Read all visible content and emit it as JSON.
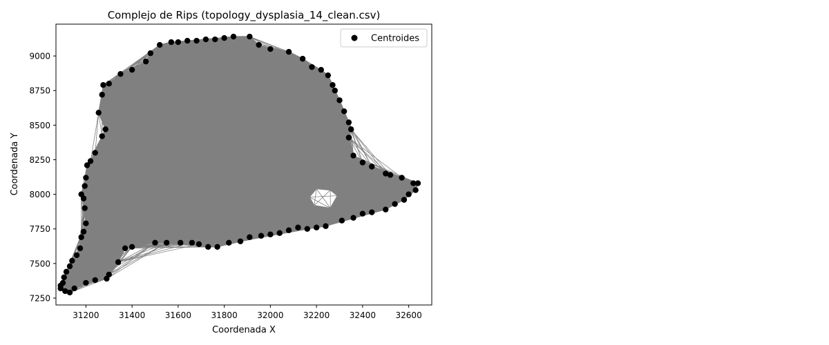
{
  "chart_data": {
    "type": "scatter",
    "title": "Complejo de Rips (topology_dysplasia_14_clean.csv)",
    "xlabel": "Coordenada X",
    "ylabel": "Coordenada Y",
    "xlim": [
      31070,
      32700
    ],
    "ylim": [
      7200,
      9230
    ],
    "xticks": [
      31200,
      31400,
      31600,
      31800,
      32000,
      32200,
      32400,
      32600
    ],
    "yticks": [
      7250,
      7500,
      7750,
      8000,
      8250,
      8500,
      8750,
      9000
    ],
    "grid": false,
    "legend": {
      "location": "upper right",
      "entries": [
        "Centroides"
      ]
    },
    "series": [
      {
        "name": "Centroides",
        "color": "#000000",
        "marker": "circle",
        "points": [
          [
            31090,
            7340
          ],
          [
            31100,
            7360
          ],
          [
            31105,
            7400
          ],
          [
            31115,
            7440
          ],
          [
            31130,
            7480
          ],
          [
            31140,
            7520
          ],
          [
            31160,
            7560
          ],
          [
            31175,
            7610
          ],
          [
            31180,
            7690
          ],
          [
            31190,
            7730
          ],
          [
            31200,
            7790
          ],
          [
            31195,
            7900
          ],
          [
            31190,
            7970
          ],
          [
            31180,
            8000
          ],
          [
            31195,
            8060
          ],
          [
            31200,
            8120
          ],
          [
            31205,
            8210
          ],
          [
            31220,
            8240
          ],
          [
            31240,
            8300
          ],
          [
            31270,
            8420
          ],
          [
            31285,
            8470
          ],
          [
            31255,
            8590
          ],
          [
            31270,
            8720
          ],
          [
            31275,
            8790
          ],
          [
            31300,
            8800
          ],
          [
            31350,
            8870
          ],
          [
            31400,
            8900
          ],
          [
            31460,
            8960
          ],
          [
            31480,
            9020
          ],
          [
            31520,
            9080
          ],
          [
            31570,
            9100
          ],
          [
            31600,
            9100
          ],
          [
            31640,
            9110
          ],
          [
            31680,
            9110
          ],
          [
            31720,
            9120
          ],
          [
            31760,
            9120
          ],
          [
            31800,
            9130
          ],
          [
            31840,
            9140
          ],
          [
            31910,
            9140
          ],
          [
            31950,
            9080
          ],
          [
            32000,
            9050
          ],
          [
            32080,
            9030
          ],
          [
            32140,
            8980
          ],
          [
            32180,
            8920
          ],
          [
            32220,
            8900
          ],
          [
            32250,
            8860
          ],
          [
            32270,
            8790
          ],
          [
            32280,
            8750
          ],
          [
            32300,
            8680
          ],
          [
            32320,
            8600
          ],
          [
            32340,
            8520
          ],
          [
            32350,
            8470
          ],
          [
            32340,
            8410
          ],
          [
            32360,
            8280
          ],
          [
            32400,
            8230
          ],
          [
            32440,
            8200
          ],
          [
            32500,
            8150
          ],
          [
            32520,
            8140
          ],
          [
            32570,
            8120
          ],
          [
            32620,
            8080
          ],
          [
            32640,
            8080
          ],
          [
            32630,
            8030
          ],
          [
            32600,
            8000
          ],
          [
            32580,
            7960
          ],
          [
            32540,
            7930
          ],
          [
            32500,
            7890
          ],
          [
            32440,
            7870
          ],
          [
            32400,
            7860
          ],
          [
            32360,
            7830
          ],
          [
            32310,
            7810
          ],
          [
            32240,
            7770
          ],
          [
            32200,
            7760
          ],
          [
            32160,
            7750
          ],
          [
            32120,
            7760
          ],
          [
            32080,
            7740
          ],
          [
            32040,
            7720
          ],
          [
            32000,
            7710
          ],
          [
            31960,
            7700
          ],
          [
            31910,
            7690
          ],
          [
            31870,
            7660
          ],
          [
            31820,
            7650
          ],
          [
            31770,
            7620
          ],
          [
            31730,
            7620
          ],
          [
            31690,
            7640
          ],
          [
            31660,
            7650
          ],
          [
            31610,
            7650
          ],
          [
            31550,
            7650
          ],
          [
            31500,
            7650
          ],
          [
            31400,
            7620
          ],
          [
            31370,
            7610
          ],
          [
            31340,
            7510
          ],
          [
            31300,
            7420
          ],
          [
            31290,
            7390
          ],
          [
            31240,
            7380
          ],
          [
            31200,
            7360
          ],
          [
            31150,
            7320
          ],
          [
            31130,
            7290
          ],
          [
            31110,
            7300
          ],
          [
            31090,
            7320
          ]
        ]
      }
    ]
  }
}
